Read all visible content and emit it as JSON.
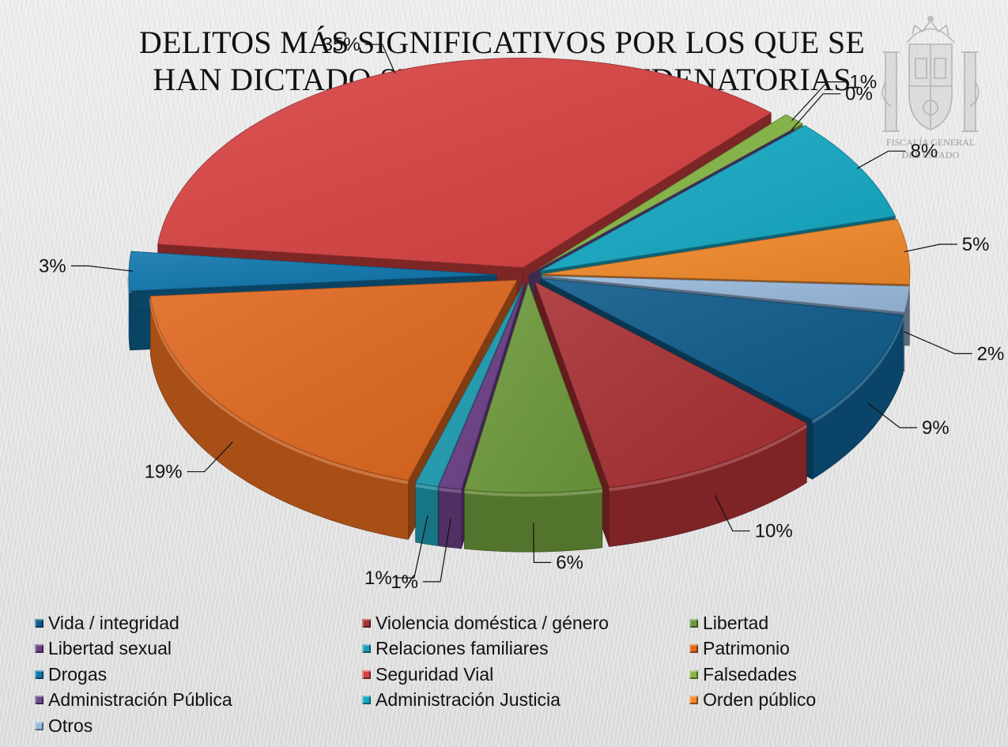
{
  "chart_data": {
    "type": "pie",
    "title": "DELITOS MÁS SIGNIFICATIVOS POR LOS QUE SE HAN DICTADO SENTENCIAS CONDENATORIAS",
    "categories": [
      "Vida / integridad",
      "Violencia doméstica / género",
      "Libertad",
      "Libertad sexual",
      "Relaciones familiares",
      "Patrimonio",
      "Drogas",
      "Seguridad Vial",
      "Falsedades",
      "Administración Pública",
      "Administración Justicia",
      "Orden público",
      "Otros"
    ],
    "values": [
      9,
      10,
      6,
      1,
      1,
      19,
      3,
      35,
      1,
      0,
      8,
      5,
      2
    ],
    "data_labels": [
      "9%",
      "10%",
      "6%",
      "1%",
      "1%",
      "19%",
      "3%",
      "35%",
      "1%",
      "0%",
      "8%",
      "5%",
      "2%"
    ],
    "colors": [
      "#0d5b8a",
      "#a83034",
      "#6e9a3c",
      "#6b3e86",
      "#1f9db3",
      "#e0681f",
      "#0f76ad",
      "#d84242",
      "#86b746",
      "#6a4a8c",
      "#15a9c4",
      "#f28a2b",
      "#9ab9dc"
    ],
    "legend_position": "bottom",
    "legend": [
      {
        "label": "Vida / integridad",
        "color": "#0d5b8a"
      },
      {
        "label": "Violencia doméstica / género",
        "color": "#a83034"
      },
      {
        "label": "Libertad",
        "color": "#6e9a3c"
      },
      {
        "label": "Libertad sexual",
        "color": "#6b3e86"
      },
      {
        "label": "Relaciones familiares",
        "color": "#1f9db3"
      },
      {
        "label": "Patrimonio",
        "color": "#e0681f"
      },
      {
        "label": "Drogas",
        "color": "#0f76ad"
      },
      {
        "label": "Seguridad Vial",
        "color": "#d84242"
      },
      {
        "label": "Falsedades",
        "color": "#86b746"
      },
      {
        "label": "Administración Pública",
        "color": "#6a4a8c"
      },
      {
        "label": "Administración Justicia",
        "color": "#15a9c4"
      },
      {
        "label": "Orden público",
        "color": "#f28a2b"
      },
      {
        "label": "Otros",
        "color": "#9ab9dc"
      }
    ]
  },
  "emblem": {
    "line1": "FISCALÍA GENERAL",
    "line2": "DEL ESTADO"
  }
}
